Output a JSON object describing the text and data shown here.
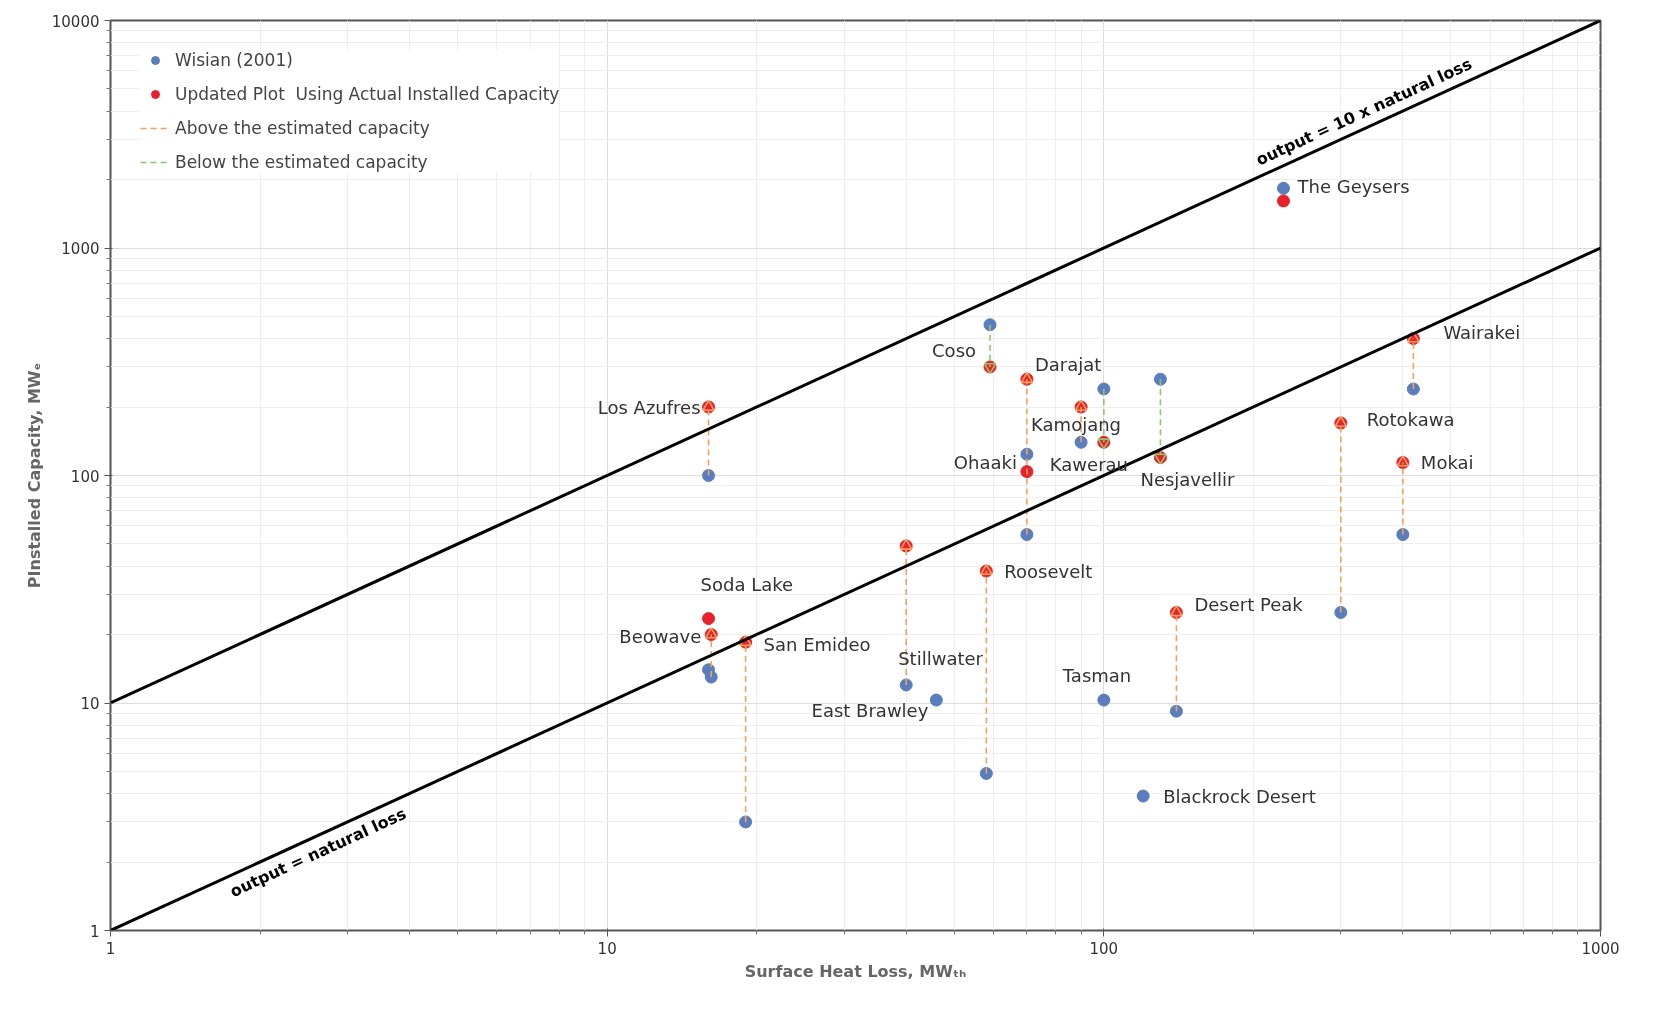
{
  "chart_data": {
    "type": "scatter",
    "xlabel": "Surface Heat Loss, MWₜₕ",
    "ylabel": "PInstalled Capacity, MWₑ",
    "log": "xy",
    "xlim": [
      1,
      1000
    ],
    "xticks": [
      1,
      10,
      100,
      1000
    ],
    "ylim": [
      1,
      10000
    ],
    "yticks": [
      1,
      10,
      100,
      1000,
      10000
    ],
    "grid": true,
    "legend": "top left",
    "series": [
      {
        "name": "Wisian (2001)",
        "marker": "circle",
        "color": "#5a7dbd",
        "x": [
          16,
          16,
          16.2,
          19,
          40,
          46,
          58,
          59,
          70,
          70,
          90,
          100,
          100,
          120,
          130,
          140,
          230,
          300,
          400,
          420
        ],
        "values": [
          100,
          14,
          13,
          3,
          12,
          10.3,
          4.9,
          460,
          124,
          55,
          140,
          240,
          10.3,
          3.9,
          265,
          9.2,
          1830,
          25,
          55,
          240
        ]
      },
      {
        "name": "Updated Plot  Using Actual Installed Capacity",
        "marker": "circle",
        "color": "#e8212b",
        "x": [
          16,
          16,
          16.2,
          19,
          40,
          58,
          59,
          70,
          70,
          90,
          100,
          130,
          140,
          230,
          300,
          400,
          420
        ],
        "values": [
          200,
          23.5,
          20,
          18.5,
          49,
          38,
          300,
          265,
          104,
          200,
          140,
          120,
          25,
          1610,
          170,
          114,
          400
        ]
      },
      {
        "name": "Above the estimated capacity",
        "type": "line",
        "marker": "triangle",
        "line_style": "dashed",
        "color": "#f4a15d",
        "x": [
          16,
          16
        ],
        "values": [
          100,
          200
        ]
      },
      {
        "type": "line",
        "marker": "triangle",
        "line_style": "dashed",
        "color": "#f4a15d",
        "x": [
          16.2,
          16.2
        ],
        "values": [
          13,
          20
        ]
      },
      {
        "type": "line",
        "marker": "triangle",
        "line_style": "dashed",
        "color": "#f4a15d",
        "x": [
          19,
          19
        ],
        "values": [
          3,
          18.5
        ]
      },
      {
        "type": "line",
        "marker": "triangle",
        "line_style": "dashed",
        "color": "#f4a15d",
        "x": [
          40,
          40
        ],
        "values": [
          12,
          49
        ]
      },
      {
        "type": "line",
        "marker": "triangle",
        "line_style": "dashed",
        "color": "#f4a15d",
        "x": [
          58,
          58
        ],
        "values": [
          4.9,
          38
        ]
      },
      {
        "type": "line",
        "marker": "triangle",
        "line_style": "dashed",
        "color": "#f4a15d",
        "x": [
          70,
          70
        ],
        "values": [
          55,
          265
        ]
      },
      {
        "type": "line",
        "marker": "triangle",
        "line_style": "dashed",
        "color": "#f4a15d",
        "x": [
          90,
          90
        ],
        "values": [
          140,
          200
        ]
      },
      {
        "type": "line",
        "marker": "triangle",
        "line_style": "dashed",
        "color": "#f4a15d",
        "x": [
          140,
          140
        ],
        "values": [
          9.2,
          25
        ]
      },
      {
        "type": "line",
        "marker": "triangle",
        "line_style": "dashed",
        "color": "#f4a15d",
        "x": [
          300,
          300
        ],
        "values": [
          25,
          170
        ]
      },
      {
        "type": "line",
        "marker": "triangle",
        "line_style": "dashed",
        "color": "#f4a15d",
        "x": [
          400,
          400
        ],
        "values": [
          55,
          114
        ]
      },
      {
        "type": "line",
        "marker": "triangle",
        "line_style": "dashed",
        "color": "#f4a15d",
        "x": [
          420,
          420
        ],
        "values": [
          240,
          400
        ]
      },
      {
        "name": "Below the estimated capacity",
        "type": "line",
        "marker": "triangle",
        "line_style": "dashed",
        "color": "#8cc96a",
        "x": [
          59,
          59
        ],
        "values": [
          460,
          300
        ]
      },
      {
        "type": "line",
        "marker": "triangle",
        "line_style": "dashed",
        "color": "#8cc96a",
        "x": [
          100,
          100
        ],
        "values": [
          240,
          140
        ]
      },
      {
        "type": "line",
        "marker": "triangle",
        "line_style": "dashed",
        "color": "#8cc96a",
        "x": [
          130,
          130
        ],
        "values": [
          265,
          120
        ]
      },
      {
        "type": "line",
        "marker": "none",
        "color": "#000000",
        "x": [
          1,
          1000
        ],
        "values": [
          1,
          1000
        ]
      },
      {
        "type": "line",
        "marker": "none",
        "color": "#000000",
        "x": [
          1,
          1000
        ],
        "values": [
          10,
          10000
        ]
      }
    ],
    "annotations": [
      {
        "text": "The Geysers",
        "x": 230,
        "y": 1830
      },
      {
        "text": "Wairakei",
        "x": 420,
        "y": 400
      },
      {
        "text": "Rotokawa",
        "x": 300,
        "y": 170
      },
      {
        "text": "Mokai",
        "x": 400,
        "y": 114
      },
      {
        "text": "Nesjavellir",
        "x": 130,
        "y": 120
      },
      {
        "text": "Kawerau",
        "x": 100,
        "y": 140
      },
      {
        "text": "Ohaaki",
        "x": 70,
        "y": 124
      },
      {
        "text": "Kamojang",
        "x": 90,
        "y": 200
      },
      {
        "text": "Darajat",
        "x": 70,
        "y": 265
      },
      {
        "text": "Coso",
        "x": 59,
        "y": 300
      },
      {
        "text": "Los Azufres",
        "x": 16,
        "y": 200
      },
      {
        "text": "Soda Lake",
        "x": 16,
        "y": 23.5
      },
      {
        "text": "Beowave",
        "x": 16.2,
        "y": 20
      },
      {
        "text": "San Emideo",
        "x": 19,
        "y": 18.5
      },
      {
        "text": "Stillwater",
        "x": 40,
        "y": 12
      },
      {
        "text": "East Brawley",
        "x": 46,
        "y": 10.3
      },
      {
        "text": "Roosevelt",
        "x": 58,
        "y": 38
      },
      {
        "text": "Tasman",
        "x": 100,
        "y": 10.3
      },
      {
        "text": "Desert Peak",
        "x": 140,
        "y": 25
      },
      {
        "text": "Blackrock Desert",
        "x": 120,
        "y": 3.9
      },
      {
        "text": "output = 10 x natural loss",
        "x": 344,
        "y": 3440
      },
      {
        "text": "output = natural loss",
        "x": 2.54,
        "y": 2.54
      }
    ]
  }
}
